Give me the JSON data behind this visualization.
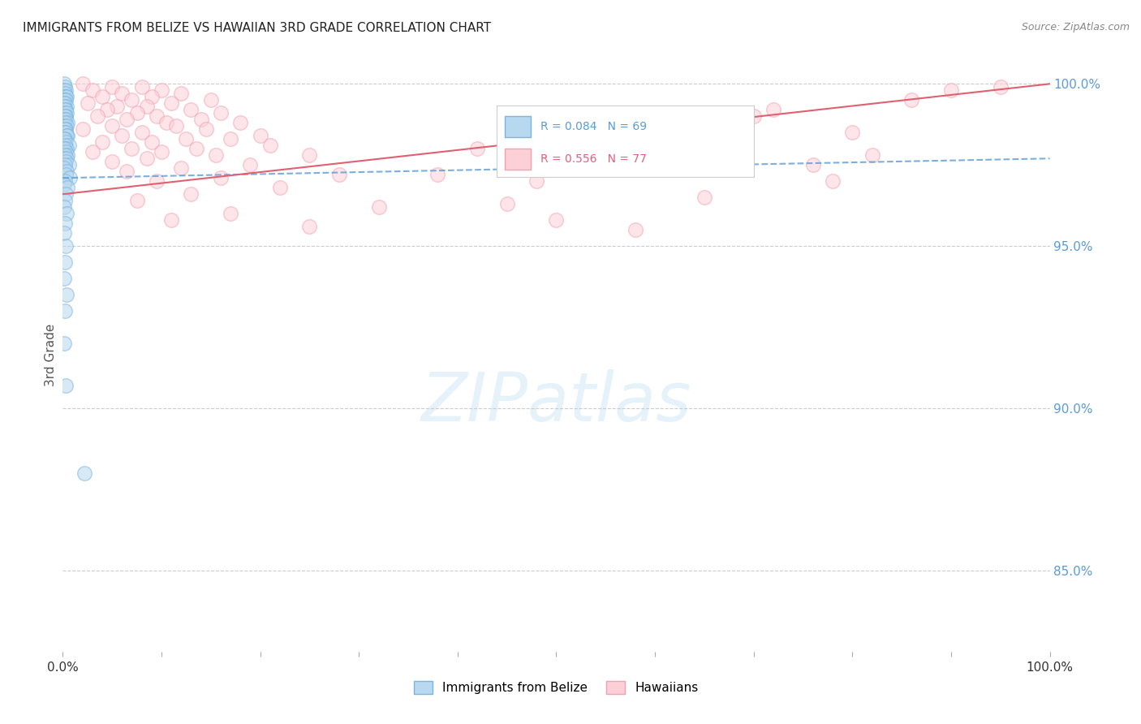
{
  "title": "IMMIGRANTS FROM BELIZE VS HAWAIIAN 3RD GRADE CORRELATION CHART",
  "source": "Source: ZipAtlas.com",
  "ylabel": "3rd Grade",
  "ytick_labels": [
    "100.0%",
    "95.0%",
    "90.0%",
    "85.0%"
  ],
  "ytick_values": [
    1.0,
    0.95,
    0.9,
    0.85
  ],
  "legend_entries": [
    {
      "label": "R = 0.084   N = 69",
      "color": "#5b9bd5"
    },
    {
      "label": "R = 0.556   N = 77",
      "color": "#e06080"
    }
  ],
  "legend_labels": [
    "Immigrants from Belize",
    "Hawaiians"
  ],
  "blue_scatter_color": "#7ab4e0",
  "pink_scatter_color": "#f4a0b0",
  "blue_line_color": "#5b9bd5",
  "pink_line_color": "#e06070",
  "watermark_text": "ZIPatlas",
  "blue_points": [
    [
      0.001,
      1.0
    ],
    [
      0.002,
      0.999
    ],
    [
      0.001,
      0.998
    ],
    [
      0.003,
      0.998
    ],
    [
      0.002,
      0.997
    ],
    [
      0.001,
      0.996
    ],
    [
      0.003,
      0.996
    ],
    [
      0.004,
      0.996
    ],
    [
      0.001,
      0.995
    ],
    [
      0.002,
      0.995
    ],
    [
      0.003,
      0.995
    ],
    [
      0.001,
      0.994
    ],
    [
      0.002,
      0.994
    ],
    [
      0.004,
      0.993
    ],
    [
      0.001,
      0.993
    ],
    [
      0.003,
      0.992
    ],
    [
      0.002,
      0.992
    ],
    [
      0.001,
      0.991
    ],
    [
      0.004,
      0.991
    ],
    [
      0.003,
      0.99
    ],
    [
      0.002,
      0.99
    ],
    [
      0.001,
      0.989
    ],
    [
      0.003,
      0.989
    ],
    [
      0.005,
      0.988
    ],
    [
      0.002,
      0.988
    ],
    [
      0.001,
      0.987
    ],
    [
      0.004,
      0.987
    ],
    [
      0.003,
      0.986
    ],
    [
      0.002,
      0.986
    ],
    [
      0.001,
      0.985
    ],
    [
      0.003,
      0.985
    ],
    [
      0.005,
      0.984
    ],
    [
      0.004,
      0.984
    ],
    [
      0.002,
      0.983
    ],
    [
      0.001,
      0.983
    ],
    [
      0.003,
      0.982
    ],
    [
      0.006,
      0.981
    ],
    [
      0.002,
      0.981
    ],
    [
      0.004,
      0.98
    ],
    [
      0.001,
      0.98
    ],
    [
      0.003,
      0.979
    ],
    [
      0.005,
      0.978
    ],
    [
      0.002,
      0.978
    ],
    [
      0.001,
      0.977
    ],
    [
      0.004,
      0.977
    ],
    [
      0.003,
      0.976
    ],
    [
      0.006,
      0.975
    ],
    [
      0.002,
      0.975
    ],
    [
      0.001,
      0.974
    ],
    [
      0.004,
      0.973
    ],
    [
      0.003,
      0.972
    ],
    [
      0.007,
      0.971
    ],
    [
      0.002,
      0.97
    ],
    [
      0.001,
      0.969
    ],
    [
      0.005,
      0.968
    ],
    [
      0.003,
      0.966
    ],
    [
      0.002,
      0.964
    ],
    [
      0.001,
      0.962
    ],
    [
      0.004,
      0.96
    ],
    [
      0.002,
      0.957
    ],
    [
      0.001,
      0.954
    ],
    [
      0.003,
      0.95
    ],
    [
      0.002,
      0.945
    ],
    [
      0.001,
      0.94
    ],
    [
      0.004,
      0.935
    ],
    [
      0.002,
      0.93
    ],
    [
      0.001,
      0.92
    ],
    [
      0.003,
      0.907
    ],
    [
      0.022,
      0.88
    ]
  ],
  "pink_points": [
    [
      0.02,
      1.0
    ],
    [
      0.05,
      0.999
    ],
    [
      0.08,
      0.999
    ],
    [
      0.1,
      0.998
    ],
    [
      0.03,
      0.998
    ],
    [
      0.06,
      0.997
    ],
    [
      0.12,
      0.997
    ],
    [
      0.04,
      0.996
    ],
    [
      0.09,
      0.996
    ],
    [
      0.15,
      0.995
    ],
    [
      0.07,
      0.995
    ],
    [
      0.11,
      0.994
    ],
    [
      0.025,
      0.994
    ],
    [
      0.055,
      0.993
    ],
    [
      0.085,
      0.993
    ],
    [
      0.13,
      0.992
    ],
    [
      0.045,
      0.992
    ],
    [
      0.075,
      0.991
    ],
    [
      0.16,
      0.991
    ],
    [
      0.035,
      0.99
    ],
    [
      0.095,
      0.99
    ],
    [
      0.14,
      0.989
    ],
    [
      0.065,
      0.989
    ],
    [
      0.105,
      0.988
    ],
    [
      0.18,
      0.988
    ],
    [
      0.05,
      0.987
    ],
    [
      0.115,
      0.987
    ],
    [
      0.02,
      0.986
    ],
    [
      0.145,
      0.986
    ],
    [
      0.08,
      0.985
    ],
    [
      0.2,
      0.984
    ],
    [
      0.06,
      0.984
    ],
    [
      0.125,
      0.983
    ],
    [
      0.17,
      0.983
    ],
    [
      0.04,
      0.982
    ],
    [
      0.09,
      0.982
    ],
    [
      0.21,
      0.981
    ],
    [
      0.07,
      0.98
    ],
    [
      0.135,
      0.98
    ],
    [
      0.03,
      0.979
    ],
    [
      0.1,
      0.979
    ],
    [
      0.25,
      0.978
    ],
    [
      0.155,
      0.978
    ],
    [
      0.085,
      0.977
    ],
    [
      0.05,
      0.976
    ],
    [
      0.19,
      0.975
    ],
    [
      0.12,
      0.974
    ],
    [
      0.065,
      0.973
    ],
    [
      0.28,
      0.972
    ],
    [
      0.16,
      0.971
    ],
    [
      0.095,
      0.97
    ],
    [
      0.22,
      0.968
    ],
    [
      0.13,
      0.966
    ],
    [
      0.075,
      0.964
    ],
    [
      0.32,
      0.962
    ],
    [
      0.17,
      0.96
    ],
    [
      0.11,
      0.958
    ],
    [
      0.25,
      0.956
    ],
    [
      0.42,
      0.98
    ],
    [
      0.55,
      0.978
    ],
    [
      0.6,
      0.985
    ],
    [
      0.48,
      0.97
    ],
    [
      0.7,
      0.99
    ],
    [
      0.76,
      0.975
    ],
    [
      0.65,
      0.965
    ],
    [
      0.82,
      0.978
    ],
    [
      0.58,
      0.955
    ],
    [
      0.38,
      0.972
    ],
    [
      0.9,
      0.998
    ],
    [
      0.95,
      0.999
    ],
    [
      0.86,
      0.995
    ],
    [
      0.8,
      0.985
    ],
    [
      0.45,
      0.963
    ],
    [
      0.68,
      0.988
    ],
    [
      0.72,
      0.992
    ],
    [
      0.5,
      0.958
    ],
    [
      0.78,
      0.97
    ]
  ],
  "blue_line": {
    "x0": 0.0,
    "y0": 0.971,
    "x1": 1.0,
    "y1": 0.977
  },
  "pink_line": {
    "x0": 0.0,
    "y0": 0.966,
    "x1": 1.0,
    "y1": 1.0
  },
  "xmin": 0.0,
  "xmax": 1.0,
  "ymin": 0.825,
  "ymax": 1.008
}
